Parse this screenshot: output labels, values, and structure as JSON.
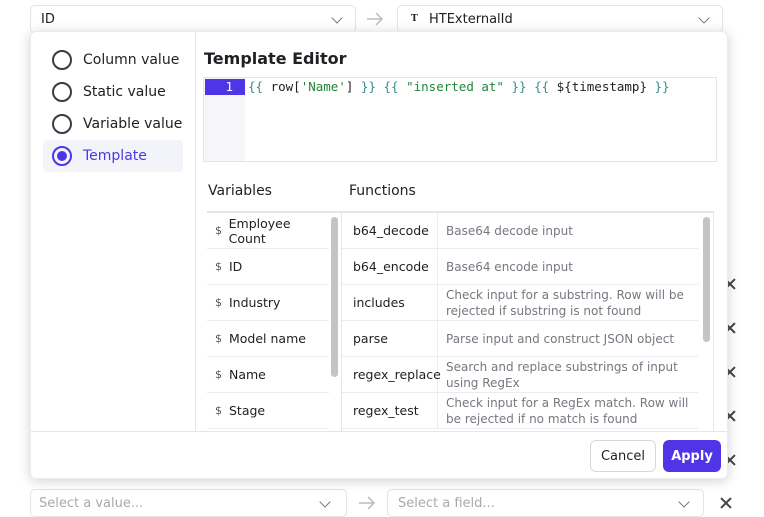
{
  "background": {
    "top_source": "ID",
    "top_target_icon": "T",
    "top_target": "HTExternalId",
    "bottom_source_placeholder": "Select a value...",
    "bottom_target_placeholder": "Select a field..."
  },
  "modal": {
    "options": [
      "Column value",
      "Static value",
      "Variable value",
      "Template"
    ],
    "selected_option": 3,
    "editor_title": "Template Editor",
    "line_number": 1,
    "code": "{{ row['Name'] }} {{ \"inserted at\" }} {{ ${timestamp} }}",
    "variables_title": "Variables",
    "functions_title": "Functions",
    "variable_icon": "$",
    "variables": [
      "Employee Count",
      "ID",
      "Industry",
      "Model name",
      "Name",
      "Stage"
    ],
    "functions": [
      {
        "name": "b64_decode",
        "description": "Base64 decode input"
      },
      {
        "name": "b64_encode",
        "description": "Base64 encode input"
      },
      {
        "name": "includes",
        "description": "Check input for a substring. Row will be rejected if substring is not found"
      },
      {
        "name": "parse",
        "description": "Parse input and construct JSON object"
      },
      {
        "name": "regex_replace",
        "description": "Search and replace substrings of input using RegEx"
      },
      {
        "name": "regex_test",
        "description": "Check input for a RegEx match. Row will be rejected if no match is found"
      }
    ],
    "cancel": "Cancel",
    "apply": "Apply"
  }
}
